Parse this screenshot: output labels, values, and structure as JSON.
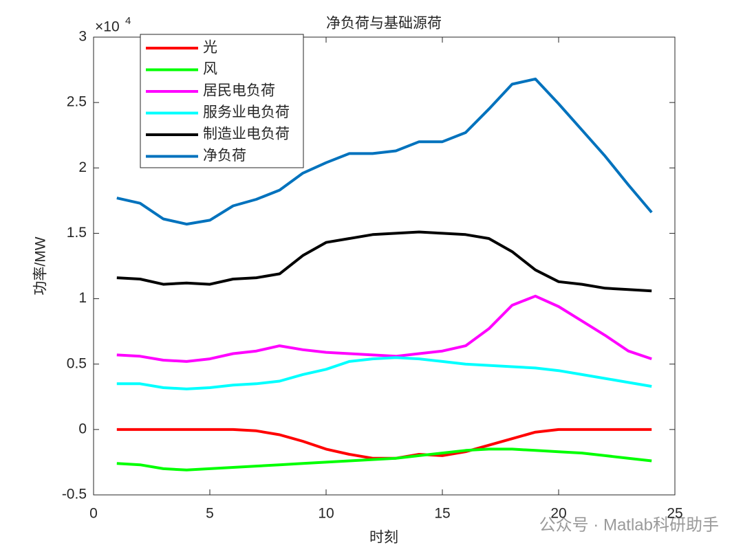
{
  "chart_data": {
    "type": "line",
    "title": "净负荷与基础源荷",
    "xlabel": "时刻",
    "ylabel": "功率/MW",
    "y_multiplier": {
      "base": "×10",
      "exponent": "4"
    },
    "watermark": "公众号 · Matlab科研助手",
    "x": [
      1,
      2,
      3,
      4,
      5,
      6,
      7,
      8,
      9,
      10,
      11,
      12,
      13,
      14,
      15,
      16,
      17,
      18,
      19,
      20,
      21,
      22,
      23,
      24
    ],
    "xlim": [
      0,
      25
    ],
    "xticks": [
      0,
      5,
      10,
      15,
      20,
      25
    ],
    "ylim": [
      -0.5,
      3
    ],
    "yticks": [
      -0.5,
      0,
      0.5,
      1,
      1.5,
      2,
      2.5,
      3
    ],
    "grid": false,
    "legend": "upper-left",
    "series": [
      {
        "name": "光",
        "color": "#ff0000",
        "values": [
          0,
          0,
          0,
          0,
          0,
          0,
          -0.01,
          -0.04,
          -0.09,
          -0.15,
          -0.19,
          -0.22,
          -0.22,
          -0.19,
          -0.2,
          -0.17,
          -0.12,
          -0.07,
          -0.02,
          0,
          0,
          0,
          0,
          0
        ]
      },
      {
        "name": "风",
        "color": "#00ff00",
        "values": [
          -0.26,
          -0.27,
          -0.3,
          -0.31,
          -0.3,
          -0.29,
          -0.28,
          -0.27,
          -0.26,
          -0.25,
          -0.24,
          -0.23,
          -0.22,
          -0.2,
          -0.18,
          -0.16,
          -0.15,
          -0.15,
          -0.16,
          -0.17,
          -0.18,
          -0.2,
          -0.22,
          -0.24
        ]
      },
      {
        "name": "居民电负荷",
        "color": "#ff00ff",
        "values": [
          0.57,
          0.56,
          0.53,
          0.52,
          0.54,
          0.58,
          0.6,
          0.64,
          0.61,
          0.59,
          0.58,
          0.57,
          0.56,
          0.58,
          0.6,
          0.64,
          0.77,
          0.95,
          1.02,
          0.94,
          0.83,
          0.72,
          0.6,
          0.54
        ]
      },
      {
        "name": "服务业电负荷",
        "color": "#00ffff",
        "values": [
          0.35,
          0.35,
          0.32,
          0.31,
          0.32,
          0.34,
          0.35,
          0.37,
          0.42,
          0.46,
          0.52,
          0.54,
          0.55,
          0.54,
          0.52,
          0.5,
          0.49,
          0.48,
          0.47,
          0.45,
          0.42,
          0.39,
          0.36,
          0.33
        ]
      },
      {
        "name": "制造业电负荷",
        "color": "#000000",
        "values": [
          1.16,
          1.15,
          1.11,
          1.12,
          1.11,
          1.15,
          1.16,
          1.19,
          1.33,
          1.43,
          1.46,
          1.49,
          1.5,
          1.51,
          1.5,
          1.49,
          1.46,
          1.36,
          1.22,
          1.13,
          1.11,
          1.08,
          1.07,
          1.06
        ]
      },
      {
        "name": "净负荷",
        "color": "#0072bd",
        "values": [
          1.77,
          1.73,
          1.61,
          1.57,
          1.6,
          1.71,
          1.76,
          1.83,
          1.96,
          2.04,
          2.11,
          2.11,
          2.13,
          2.2,
          2.2,
          2.27,
          2.45,
          2.64,
          2.68,
          2.49,
          2.29,
          2.09,
          1.87,
          1.66
        ]
      }
    ]
  }
}
